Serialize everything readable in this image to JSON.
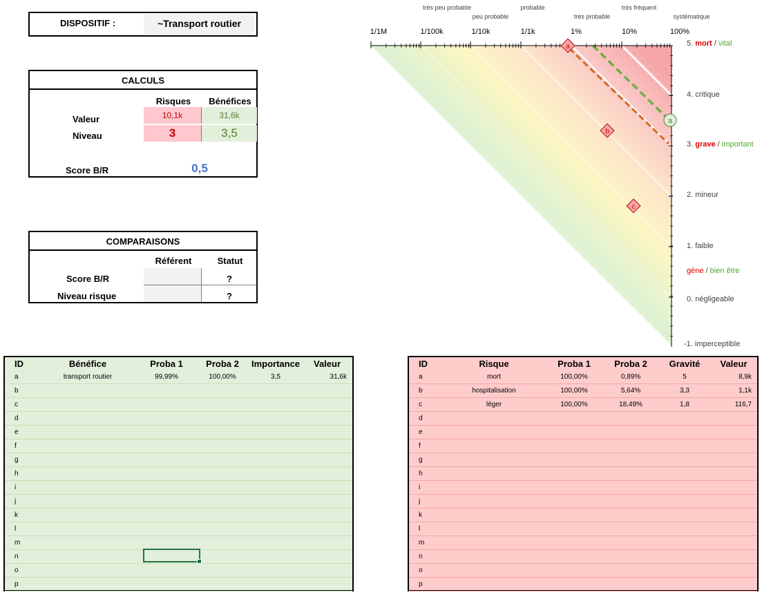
{
  "dispositif": {
    "label": "DISPOSITIF :",
    "value": "~Transport routier"
  },
  "calculs": {
    "title": "CALCULS",
    "col_risques": "Risques",
    "col_benefices": "Bénéfices",
    "row_valeur": "Valeur",
    "row_niveau": "Niveau",
    "valeur_risques": "10,1k",
    "valeur_benefices": "31,6k",
    "niveau_risques": "3",
    "niveau_benefices": "3,5",
    "score_label": "Score B/R",
    "score_value": "0,5"
  },
  "comparaisons": {
    "title": "COMPARAISONS",
    "col_referent": "Référent",
    "col_statut": "Statut",
    "row_score": "Score B/R",
    "row_niveau": "Niveau risque",
    "statut_score": "?",
    "statut_niveau": "?"
  },
  "chart": {
    "prob_words": [
      "très peu probable",
      "peu probable",
      "probable",
      "très probable",
      "très fréquent",
      "systèmatique"
    ],
    "prob_ticks": [
      "1/1M",
      "1/100k",
      "1/10k",
      "1/1k",
      "1%",
      "10%",
      "100%"
    ],
    "levels": {
      "l5_num": "5.",
      "l5_red": "mort",
      "l5_sep": "/",
      "l5_green": "vital",
      "l4": "4. critique",
      "l3_num": "3.",
      "l3_red": "grave",
      "l3_sep": "/",
      "l3_green": "important",
      "l2": "2. mineur",
      "l1": "1. faible",
      "lg_red": "gène",
      "lg_sep": "/",
      "lg_green": "bien être",
      "l0": "0. négligeable",
      "lm1": "-1. imperceptible"
    },
    "markers": [
      "a",
      "b",
      "c",
      "a"
    ]
  },
  "benefices": {
    "headers": [
      "ID",
      "Bénéfice",
      "Proba 1",
      "Proba 2",
      "Importance",
      "Valeur"
    ],
    "rows": [
      [
        "a",
        "transport routier",
        "99,99%",
        "100,00%",
        "3,5",
        "31,6k"
      ],
      [
        "b",
        "",
        "",
        "",
        "",
        ""
      ],
      [
        "c",
        "",
        "",
        "",
        "",
        ""
      ],
      [
        "d",
        "",
        "",
        "",
        "",
        ""
      ],
      [
        "e",
        "",
        "",
        "",
        "",
        ""
      ],
      [
        "f",
        "",
        "",
        "",
        "",
        ""
      ],
      [
        "g",
        "",
        "",
        "",
        "",
        ""
      ],
      [
        "h",
        "",
        "",
        "",
        "",
        ""
      ],
      [
        "i",
        "",
        "",
        "",
        "",
        ""
      ],
      [
        "j",
        "",
        "",
        "",
        "",
        ""
      ],
      [
        "k",
        "",
        "",
        "",
        "",
        ""
      ],
      [
        "l",
        "",
        "",
        "",
        "",
        ""
      ],
      [
        "m",
        "",
        "",
        "",
        "",
        ""
      ],
      [
        "n",
        "",
        "",
        "",
        "",
        ""
      ],
      [
        "o",
        "",
        "",
        "",
        "",
        ""
      ],
      [
        "p",
        "",
        "",
        "",
        "",
        ""
      ]
    ]
  },
  "risques": {
    "headers": [
      "ID",
      "Risque",
      "Proba 1",
      "Proba 2",
      "Gravité",
      "Valeur"
    ],
    "rows": [
      [
        "a",
        "mort",
        "100,00%",
        "0,89%",
        "5",
        "8,9k"
      ],
      [
        "b",
        "hospitalisation",
        "100,00%",
        "5,64%",
        "3,3",
        "1,1k"
      ],
      [
        "c",
        "léger",
        "100,00%",
        "18,49%",
        "1,8",
        "116,7"
      ],
      [
        "d",
        "",
        "",
        "",
        "",
        ""
      ],
      [
        "e",
        "",
        "",
        "",
        "",
        ""
      ],
      [
        "f",
        "",
        "",
        "",
        "",
        ""
      ],
      [
        "g",
        "",
        "",
        "",
        "",
        ""
      ],
      [
        "h",
        "",
        "",
        "",
        "",
        ""
      ],
      [
        "i",
        "",
        "",
        "",
        "",
        ""
      ],
      [
        "j",
        "",
        "",
        "",
        "",
        ""
      ],
      [
        "k",
        "",
        "",
        "",
        "",
        ""
      ],
      [
        "l",
        "",
        "",
        "",
        "",
        ""
      ],
      [
        "m",
        "",
        "",
        "",
        "",
        ""
      ],
      [
        "n",
        "",
        "",
        "",
        "",
        ""
      ],
      [
        "o",
        "",
        "",
        "",
        "",
        ""
      ],
      [
        "p",
        "",
        "",
        "",
        "",
        ""
      ]
    ]
  },
  "colors": {
    "red": "#e00000",
    "green": "#4ea72e",
    "blue": "#4472c4",
    "orange": "#d4681d"
  }
}
